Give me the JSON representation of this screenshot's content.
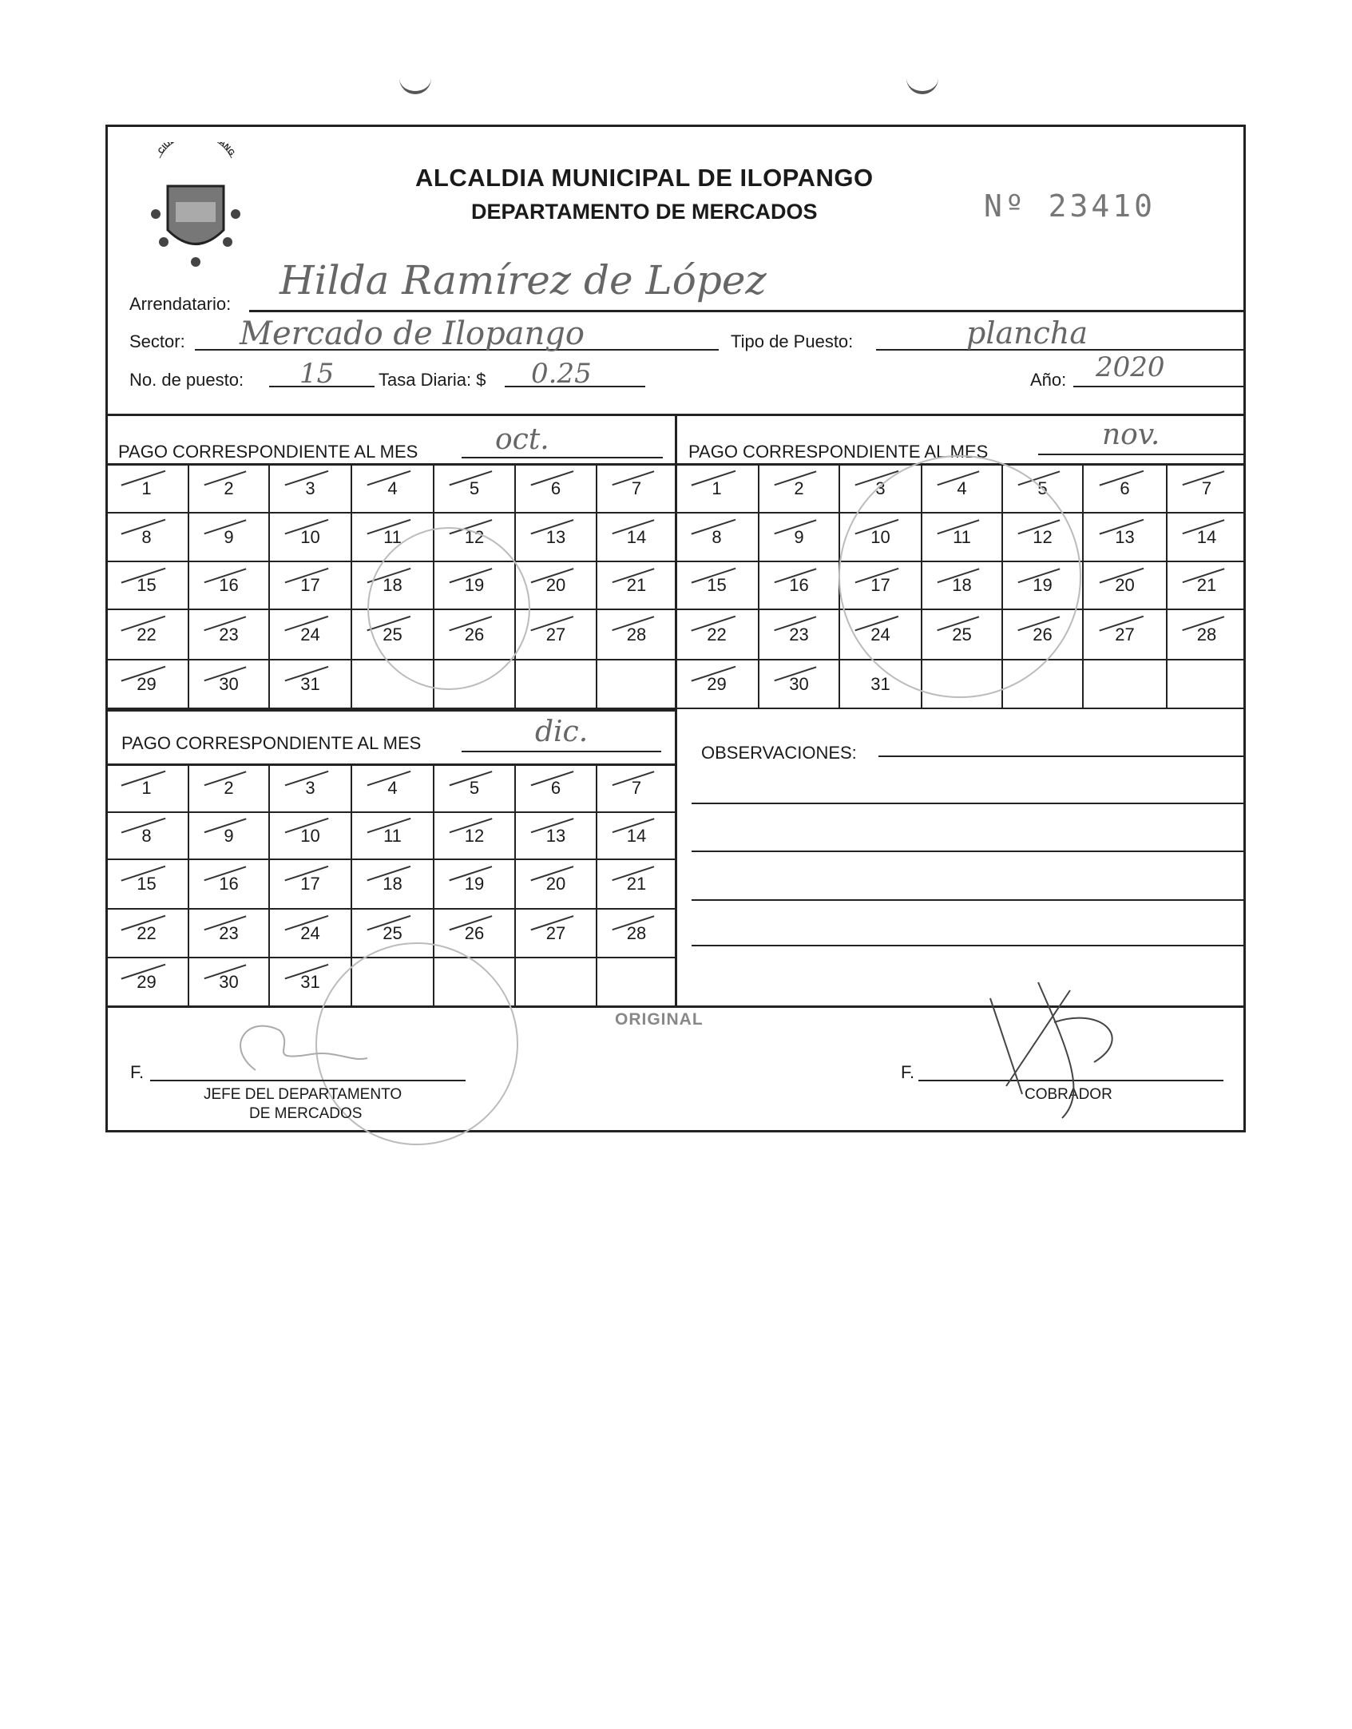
{
  "header": {
    "title": "ALCALDIA MUNICIPAL DE ILOPANGO",
    "subtitle": "DEPARTAMENTO DE MERCADOS",
    "folio_label": "Nº",
    "folio_number": "23410",
    "seal_text": "CIUDAD DE ILOPANGO"
  },
  "fields": {
    "arrendatario_label": "Arrendatario:",
    "arrendatario_value": "Hilda Ramírez de López",
    "sector_label": "Sector:",
    "sector_value": "Mercado de Ilopango",
    "tipo_label": "Tipo de Puesto:",
    "tipo_value": "plancha",
    "puesto_label": "No. de puesto:",
    "puesto_value": "15",
    "tasa_label": "Tasa Diaria: $",
    "tasa_value": "0.25",
    "anio_label": "Año:",
    "anio_value": "2020"
  },
  "months": [
    {
      "label": "PAGO CORRESPONDIENTE AL MES",
      "value": "oct.",
      "days": 31,
      "marked_days": [
        1,
        2,
        3,
        4,
        5,
        6,
        7,
        8,
        9,
        10,
        11,
        12,
        13,
        14,
        15,
        16,
        17,
        18,
        19,
        20,
        21,
        22,
        23,
        24,
        25,
        26,
        27,
        28,
        29,
        30,
        31
      ]
    },
    {
      "label": "PAGO CORRESPONDIENTE AL MES",
      "value": "nov.",
      "days": 31,
      "marked_days": [
        1,
        2,
        3,
        4,
        5,
        6,
        7,
        8,
        9,
        10,
        11,
        12,
        13,
        14,
        15,
        16,
        17,
        18,
        19,
        20,
        21,
        22,
        23,
        24,
        25,
        26,
        27,
        28,
        29,
        30
      ]
    },
    {
      "label": "PAGO CORRESPONDIENTE AL MES",
      "value": "dic.",
      "days": 31,
      "marked_days": [
        1,
        2,
        3,
        4,
        5,
        6,
        7,
        8,
        9,
        10,
        11,
        12,
        13,
        14,
        15,
        16,
        17,
        18,
        19,
        20,
        21,
        22,
        23,
        24,
        25,
        26,
        27,
        28,
        29,
        30,
        31
      ]
    }
  ],
  "observaciones_label": "OBSERVACIONES:",
  "footer": {
    "original": "ORIGINAL",
    "f_left": "F.",
    "jefe_line1": "JEFE DEL DEPARTAMENTO",
    "jefe_line2": "DE MERCADOS",
    "f_right": "F.",
    "cobrador": "COBRADOR"
  }
}
